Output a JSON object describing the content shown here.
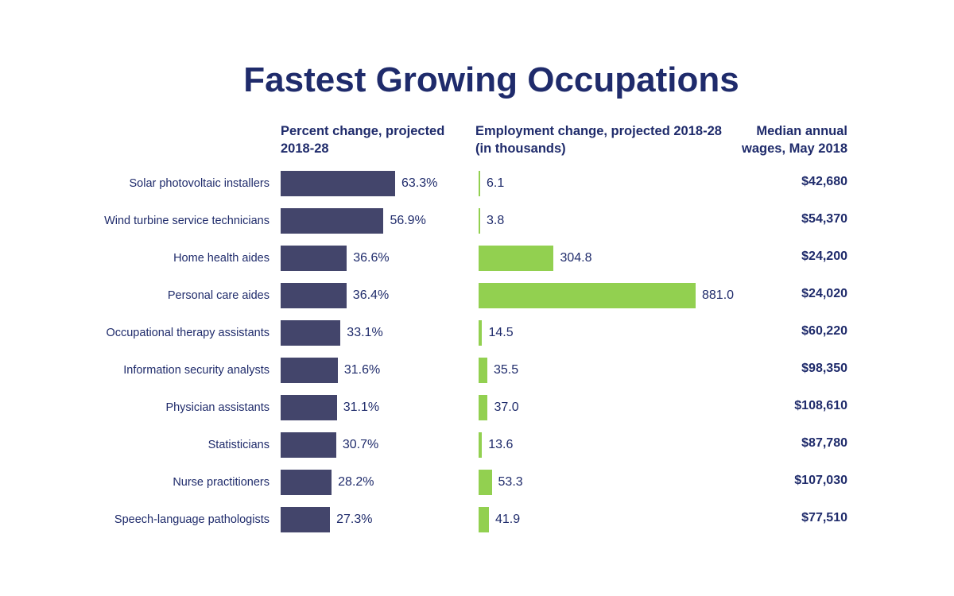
{
  "chart_data": {
    "type": "bar",
    "title": "Fastest Growing Occupations",
    "categories": [
      "Solar photovoltaic installers",
      "Wind turbine service technicians",
      "Home health aides",
      "Personal care aides",
      "Occupational therapy assistants",
      "Information security analysts",
      "Physician assistants",
      "Statisticians",
      "Nurse practitioners",
      "Speech-language pathologists"
    ],
    "series": [
      {
        "name": "Percent change, projected 2018-28",
        "values": [
          63.3,
          56.9,
          36.6,
          36.4,
          33.1,
          31.6,
          31.1,
          30.7,
          28.2,
          27.3
        ],
        "labels": [
          "63.3%",
          "56.9%",
          "36.6%",
          "36.4%",
          "33.1%",
          "31.6%",
          "31.1%",
          "30.7%",
          "28.2%",
          "27.3%"
        ],
        "color": "#43456b"
      },
      {
        "name": "Employment change, projected 2018-28 (in thousands)",
        "values": [
          6.1,
          3.8,
          304.8,
          881.0,
          14.5,
          35.5,
          37.0,
          13.6,
          53.3,
          41.9
        ],
        "labels": [
          "6.1",
          "3.8",
          "304.8",
          "881.0",
          "14.5",
          "35.5",
          "37.0",
          "13.6",
          "53.3",
          "41.9"
        ],
        "color": "#92d050"
      },
      {
        "name": "Median annual wages, May 2018",
        "values": [
          42680,
          54370,
          24200,
          24020,
          60220,
          98350,
          108610,
          87780,
          107030,
          77510
        ],
        "labels": [
          "$42,680",
          "$54,370",
          "$24,200",
          "$24,020",
          "$60,220",
          "$98,350",
          "$108,610",
          "$87,780",
          "$107,030",
          "$77,510"
        ]
      }
    ],
    "column_headers": {
      "pct_line1": "Percent change, projected",
      "pct_line2": "2018-28",
      "emp_line1": "Employment change, projected 2018-28",
      "emp_line2": "(in thousands)",
      "wage_line1": "Median annual",
      "wage_line2": "wages, May 2018"
    }
  }
}
